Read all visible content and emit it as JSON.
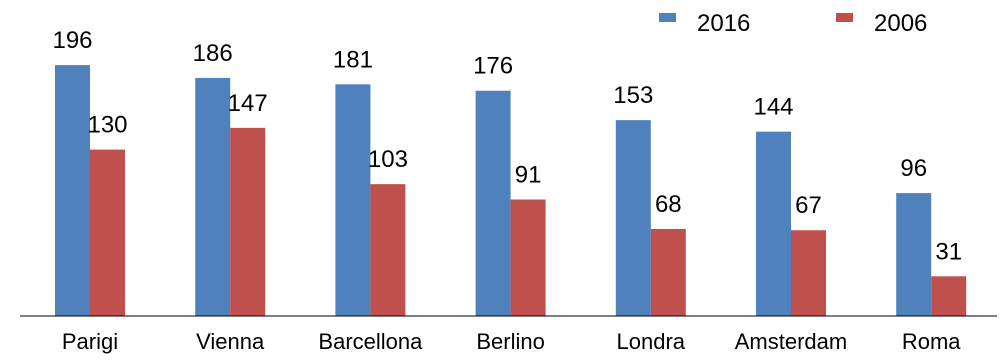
{
  "chart_data": {
    "type": "bar",
    "categories": [
      "Parigi",
      "Vienna",
      "Barcellona",
      "Berlino",
      "Londra",
      "Amsterdam",
      "Roma"
    ],
    "series": [
      {
        "name": "2016",
        "color": "#4F81BD",
        "values": [
          196,
          186,
          181,
          176,
          153,
          144,
          96
        ]
      },
      {
        "name": "2006",
        "color": "#C0504D",
        "values": [
          130,
          147,
          103,
          91,
          68,
          67,
          31
        ]
      }
    ],
    "ylim": [
      0,
      220
    ],
    "grid": false,
    "legend_position": "top-right",
    "data_labels": true
  }
}
